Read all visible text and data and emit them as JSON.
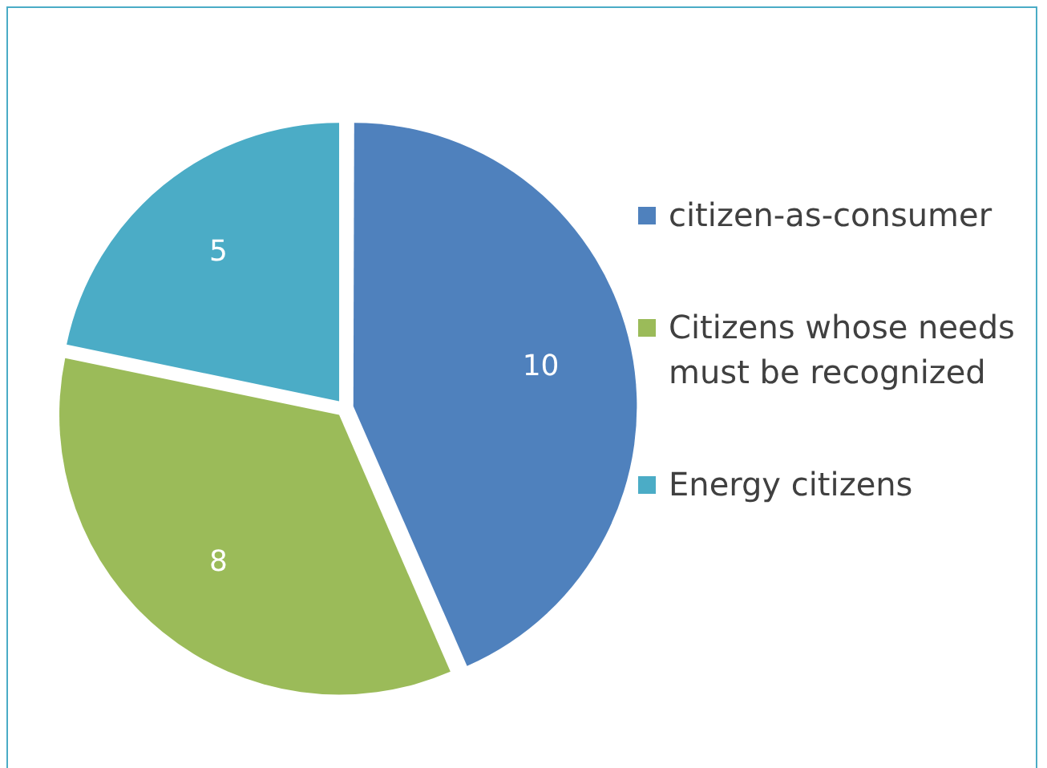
{
  "chart_data": {
    "type": "pie",
    "categories": [
      "citizen-as-consumer",
      "Citizens whose needs must be recognized",
      "Energy citizens"
    ],
    "values": [
      10,
      8,
      5
    ],
    "colors": [
      "#4f81bd",
      "#9bbb59",
      "#4bacc6"
    ],
    "data_labels": true,
    "legend": "right"
  }
}
